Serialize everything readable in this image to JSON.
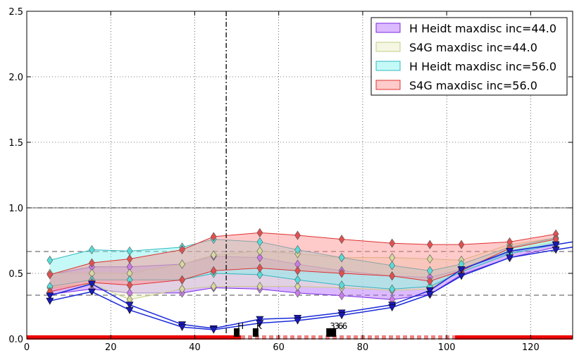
{
  "chart_data": {
    "type": "area",
    "xlim": [
      0,
      130
    ],
    "ylim": [
      0,
      2.5
    ],
    "xticks": [
      0,
      20,
      40,
      60,
      80,
      100,
      120
    ],
    "yticks": [
      0.0,
      0.5,
      1.0,
      1.5,
      2.0,
      2.5
    ],
    "x_tick_labels": [
      "0",
      "20",
      "40",
      "60",
      "80",
      "100",
      "120"
    ],
    "y_tick_labels": [
      "0.0",
      "0.5",
      "1.0",
      "1.5",
      "2.0",
      "2.5"
    ],
    "grid": true,
    "legend_position": "top-right",
    "x": [
      5.5,
      15.5,
      24.5,
      37,
      44.5,
      55.5,
      64.5,
      75,
      87,
      96,
      103.5,
      115,
      126
    ],
    "bands": [
      {
        "name": "H Heidt maxdisc inc=44.0",
        "fill": "#b266ff",
        "line": "#7a2be0",
        "marker": "#c97ae8",
        "upper": [
          0.49,
          0.55,
          0.55,
          0.57,
          0.63,
          0.62,
          0.57,
          0.52,
          0.48,
          0.47,
          0.53,
          0.66,
          0.73
        ],
        "lower": [
          0.34,
          0.38,
          0.35,
          0.35,
          0.39,
          0.38,
          0.35,
          0.33,
          0.3,
          0.34,
          0.49,
          0.62,
          0.7
        ]
      },
      {
        "name": "S4G maxdisc inc=44.0",
        "fill": "#e8eec0",
        "line": "#c5cc80",
        "marker": "#d8d8a0",
        "upper": [
          0.5,
          0.5,
          0.5,
          0.57,
          0.64,
          0.67,
          0.65,
          0.62,
          0.62,
          0.61,
          0.6,
          0.72,
          0.77
        ],
        "lower": [
          0.39,
          0.42,
          0.3,
          0.38,
          0.4,
          0.4,
          0.4,
          0.39,
          0.37,
          0.38,
          0.54,
          0.67,
          0.74
        ]
      },
      {
        "name": "H Heidt maxdisc inc=56.0",
        "fill": "#7ff2ee",
        "line": "#30b8c0",
        "marker": "#58dcd8",
        "upper": [
          0.6,
          0.68,
          0.67,
          0.7,
          0.76,
          0.74,
          0.68,
          0.62,
          0.56,
          0.52,
          0.57,
          0.7,
          0.77
        ],
        "lower": [
          0.4,
          0.45,
          0.45,
          0.45,
          0.5,
          0.49,
          0.45,
          0.41,
          0.38,
          0.4,
          0.51,
          0.65,
          0.72
        ]
      },
      {
        "name": "S4G maxdisc inc=56.0",
        "fill": "#ff8a8a",
        "line": "#e03030",
        "marker": "#e05050",
        "upper": [
          0.49,
          0.58,
          0.61,
          0.68,
          0.78,
          0.81,
          0.79,
          0.76,
          0.73,
          0.72,
          0.72,
          0.74,
          0.8
        ],
        "lower": [
          0.36,
          0.43,
          0.41,
          0.45,
          0.52,
          0.54,
          0.52,
          0.5,
          0.48,
          0.44,
          0.52,
          0.69,
          0.76
        ]
      }
    ],
    "blue_lines": [
      {
        "x": [
          5.5,
          15.5,
          24.5,
          37,
          44.5,
          55.5,
          64.5,
          75,
          87,
          96,
          103.5,
          115,
          126,
          130
        ],
        "y": [
          0.33,
          0.42,
          0.26,
          0.11,
          0.08,
          0.15,
          0.16,
          0.2,
          0.26,
          0.37,
          0.53,
          0.67,
          0.72,
          0.74
        ]
      },
      {
        "x": [
          5.5,
          15.5,
          24.5,
          37,
          44.5,
          55.5,
          64.5,
          75,
          87,
          96,
          103.5,
          115,
          126,
          130
        ],
        "y": [
          0.29,
          0.36,
          0.22,
          0.09,
          0.07,
          0.12,
          0.14,
          0.18,
          0.24,
          0.34,
          0.48,
          0.62,
          0.68,
          0.7
        ]
      }
    ],
    "hlines": [
      {
        "y": 1.0,
        "style": "solid"
      },
      {
        "y": 1.0,
        "style": "dashdot"
      },
      {
        "y": 0.6667,
        "style": "dashed"
      },
      {
        "y": 0.3333,
        "style": "dashed"
      }
    ],
    "vline": {
      "x": 47.5,
      "style": "dashdot"
    },
    "red_bars": [
      {
        "x0": 0,
        "x1": 51,
        "style": "solid"
      },
      {
        "x0": 51,
        "x1": 102,
        "style": "dashed"
      },
      {
        "x0": 102,
        "x1": 130,
        "style": "solid"
      }
    ],
    "markers": [
      {
        "x": 50,
        "label": "H"
      },
      {
        "x": 54.5,
        "label": "K"
      },
      {
        "x": 72,
        "label": "3.6"
      },
      {
        "x": 73,
        "label": "3.6"
      }
    ]
  }
}
